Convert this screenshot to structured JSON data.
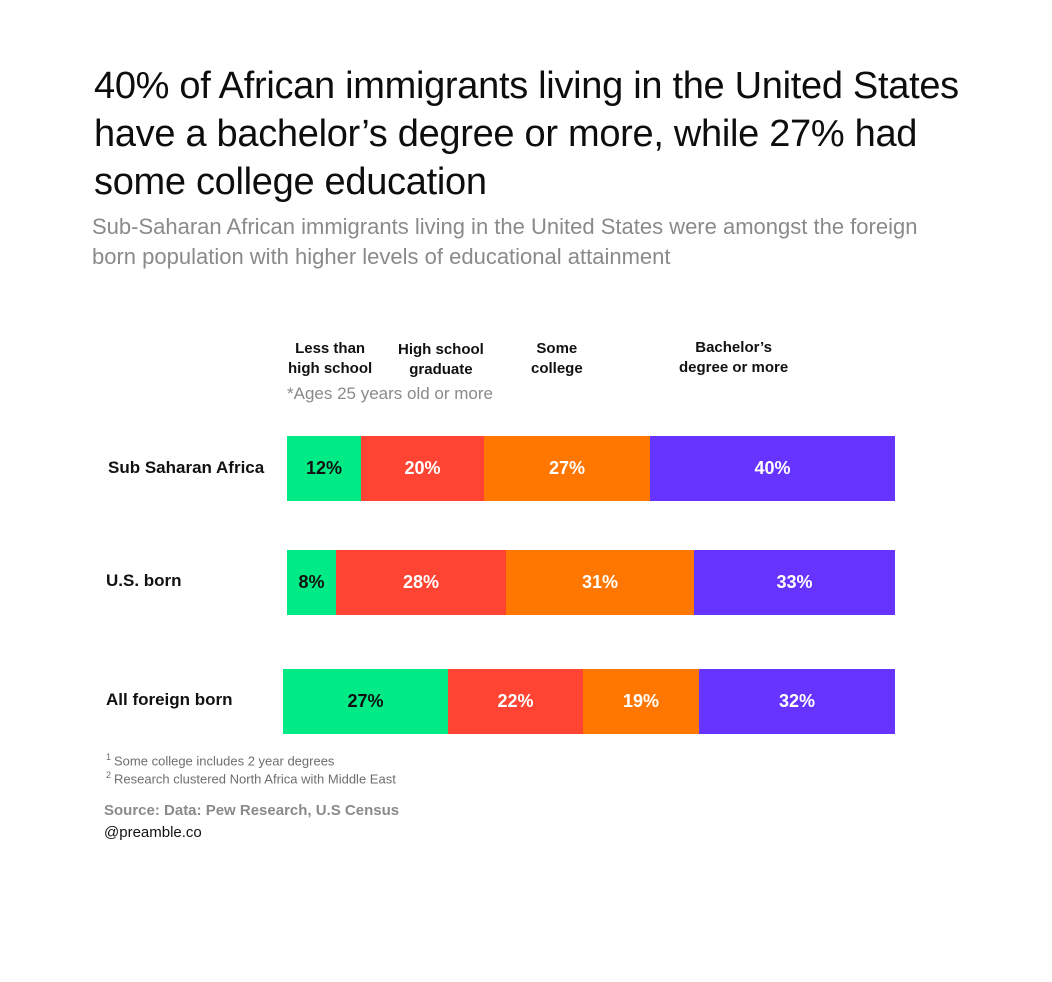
{
  "title": "40% of African immigrants living in the United States have a bachelor’s degree or more, while 27% had some college education",
  "subtitle": "Sub-Saharan African immigrants living in the United States were amongst the foreign born population with higher levels of educational attainment",
  "note": "*Ages 25 years old or more",
  "colors": {
    "less_than_high_school": "#00EB85",
    "high_school_graduate": "#FF4433",
    "some_college": "#FF7700",
    "bachelors_or_more": "#6633FF"
  },
  "chart_data": {
    "type": "bar",
    "orientation": "horizontal",
    "stacked": true,
    "normalized_percent": true,
    "categories": [
      "Sub Saharan Africa",
      "U.S. born",
      "All foreign born"
    ],
    "series": [
      {
        "name": "Less than high school",
        "values": [
          12,
          8,
          27
        ]
      },
      {
        "name": "High school graduate",
        "values": [
          20,
          28,
          22
        ]
      },
      {
        "name": "Some college",
        "values": [
          27,
          31,
          19
        ]
      },
      {
        "name": "Bachelor’s degree or more",
        "values": [
          40,
          33,
          32
        ]
      }
    ],
    "segment_labels": [
      [
        "12%",
        "20%",
        "27%",
        "40%"
      ],
      [
        "8%",
        "28%",
        "31%",
        "33%"
      ],
      [
        "27%",
        "22%",
        "19%",
        "32%"
      ]
    ],
    "legend_labels": [
      [
        "Less than",
        "high school"
      ],
      [
        "High school",
        "graduate"
      ],
      [
        "Some",
        "college"
      ],
      [
        "Bachelor’s",
        "degree or more"
      ]
    ],
    "legend_placement": "top"
  },
  "footnotes": [
    {
      "mark": "1",
      "text": "Some college includes 2 year degrees"
    },
    {
      "mark": "2",
      "text": "Research clustered North Africa with Middle East"
    }
  ],
  "source": "Source: Data: Pew Research, U.S Census",
  "handle": "@preamble.co"
}
